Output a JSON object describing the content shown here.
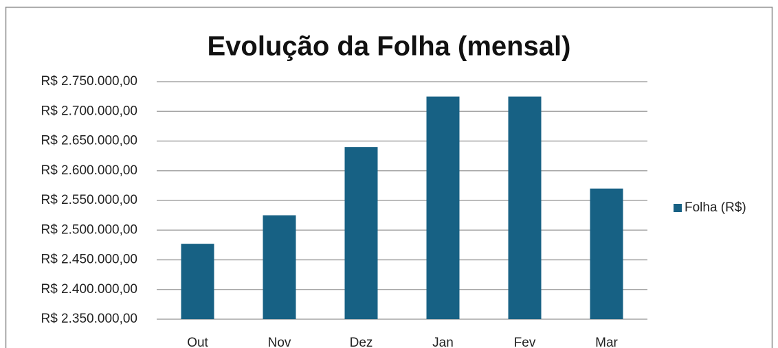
{
  "chart_data": {
    "type": "bar",
    "title": "Evolução da Folha (mensal)",
    "categories": [
      "Out",
      "Nov",
      "Dez",
      "Jan",
      "Fev",
      "Mar"
    ],
    "series": [
      {
        "name": "Folha (R$)",
        "color": "#176184",
        "values": [
          2477000,
          2525000,
          2640000,
          2725000,
          2725000,
          2570000
        ]
      }
    ],
    "ylim": [
      2350000,
      2750000
    ],
    "yticks": [
      {
        "value": 2350000,
        "label": "R$ 2.350.000,00"
      },
      {
        "value": 2400000,
        "label": "R$ 2.400.000,00"
      },
      {
        "value": 2450000,
        "label": "R$ 2.450.000,00"
      },
      {
        "value": 2500000,
        "label": "R$ 2.500.000,00"
      },
      {
        "value": 2550000,
        "label": "R$ 2.550.000,00"
      },
      {
        "value": 2600000,
        "label": "R$ 2.600.000,00"
      },
      {
        "value": 2650000,
        "label": "R$ 2.650.000,00"
      },
      {
        "value": 2700000,
        "label": "R$ 2.700.000,00"
      },
      {
        "value": 2750000,
        "label": "R$ 2.750.000,00"
      }
    ],
    "grid": true,
    "legend": "right"
  }
}
